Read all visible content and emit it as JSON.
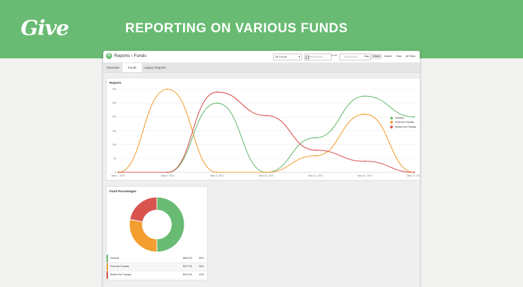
{
  "banner": {
    "logo": "Give",
    "title": "REPORTING ON VARIOUS FUNDS",
    "bg_color": "#69bb73"
  },
  "app": {
    "breadcrumb": "Reports › Funds",
    "fund_select": "All Funds",
    "date_start": "05/06/2021",
    "date_end": "05/12/2021",
    "periods": [
      "Day",
      "Week",
      "Month",
      "Year",
      "All Time"
    ],
    "active_period": "Week",
    "tabs": [
      "Overview",
      "Funds",
      "Legacy Reports"
    ],
    "active_tab": "Funds"
  },
  "reports": {
    "title": "Reports",
    "colors": {
      "General": "#69bb73",
      "Feed the Pandas": "#f29e31",
      "Shelter the Pandas": "#d9534f"
    }
  },
  "chart_data": {
    "type": "line",
    "title": "Reports",
    "x": [
      "May 7, 2021",
      "May 8, 2021",
      "May 9, 2021",
      "May 10, 2021",
      "May 11, 2021",
      "May 12, 2021",
      "May 13, 2021"
    ],
    "yticks": [
      0,
      50,
      100,
      150,
      200,
      250,
      300
    ],
    "ylim": [
      0,
      300
    ],
    "series": [
      {
        "name": "General",
        "color": "#69bb73",
        "values": [
          0,
          0,
          250,
          0,
          125,
          275,
          200
        ]
      },
      {
        "name": "Feed the Pandas",
        "color": "#f29e31",
        "values": [
          0,
          300,
          0,
          0,
          60,
          210,
          0
        ]
      },
      {
        "name": "Shelter the Pandas",
        "color": "#d9534f",
        "values": [
          0,
          0,
          290,
          205,
          80,
          40,
          0
        ]
      }
    ],
    "legend_position": "top-right",
    "grid": true
  },
  "fund_percentages": {
    "title": "Fund Percentages",
    "rows": [
      {
        "name": "General",
        "amount": "$800.00",
        "percent": "50%",
        "value": 50,
        "color": "#69bb73"
      },
      {
        "name": "Feed the Pandas",
        "amount": "$477.00",
        "percent": "28%",
        "value": 28,
        "color": "#f29e31"
      },
      {
        "name": "Shelter the Pandas",
        "amount": "$375.00",
        "percent": "22%",
        "value": 22,
        "color": "#d9534f"
      }
    ]
  }
}
